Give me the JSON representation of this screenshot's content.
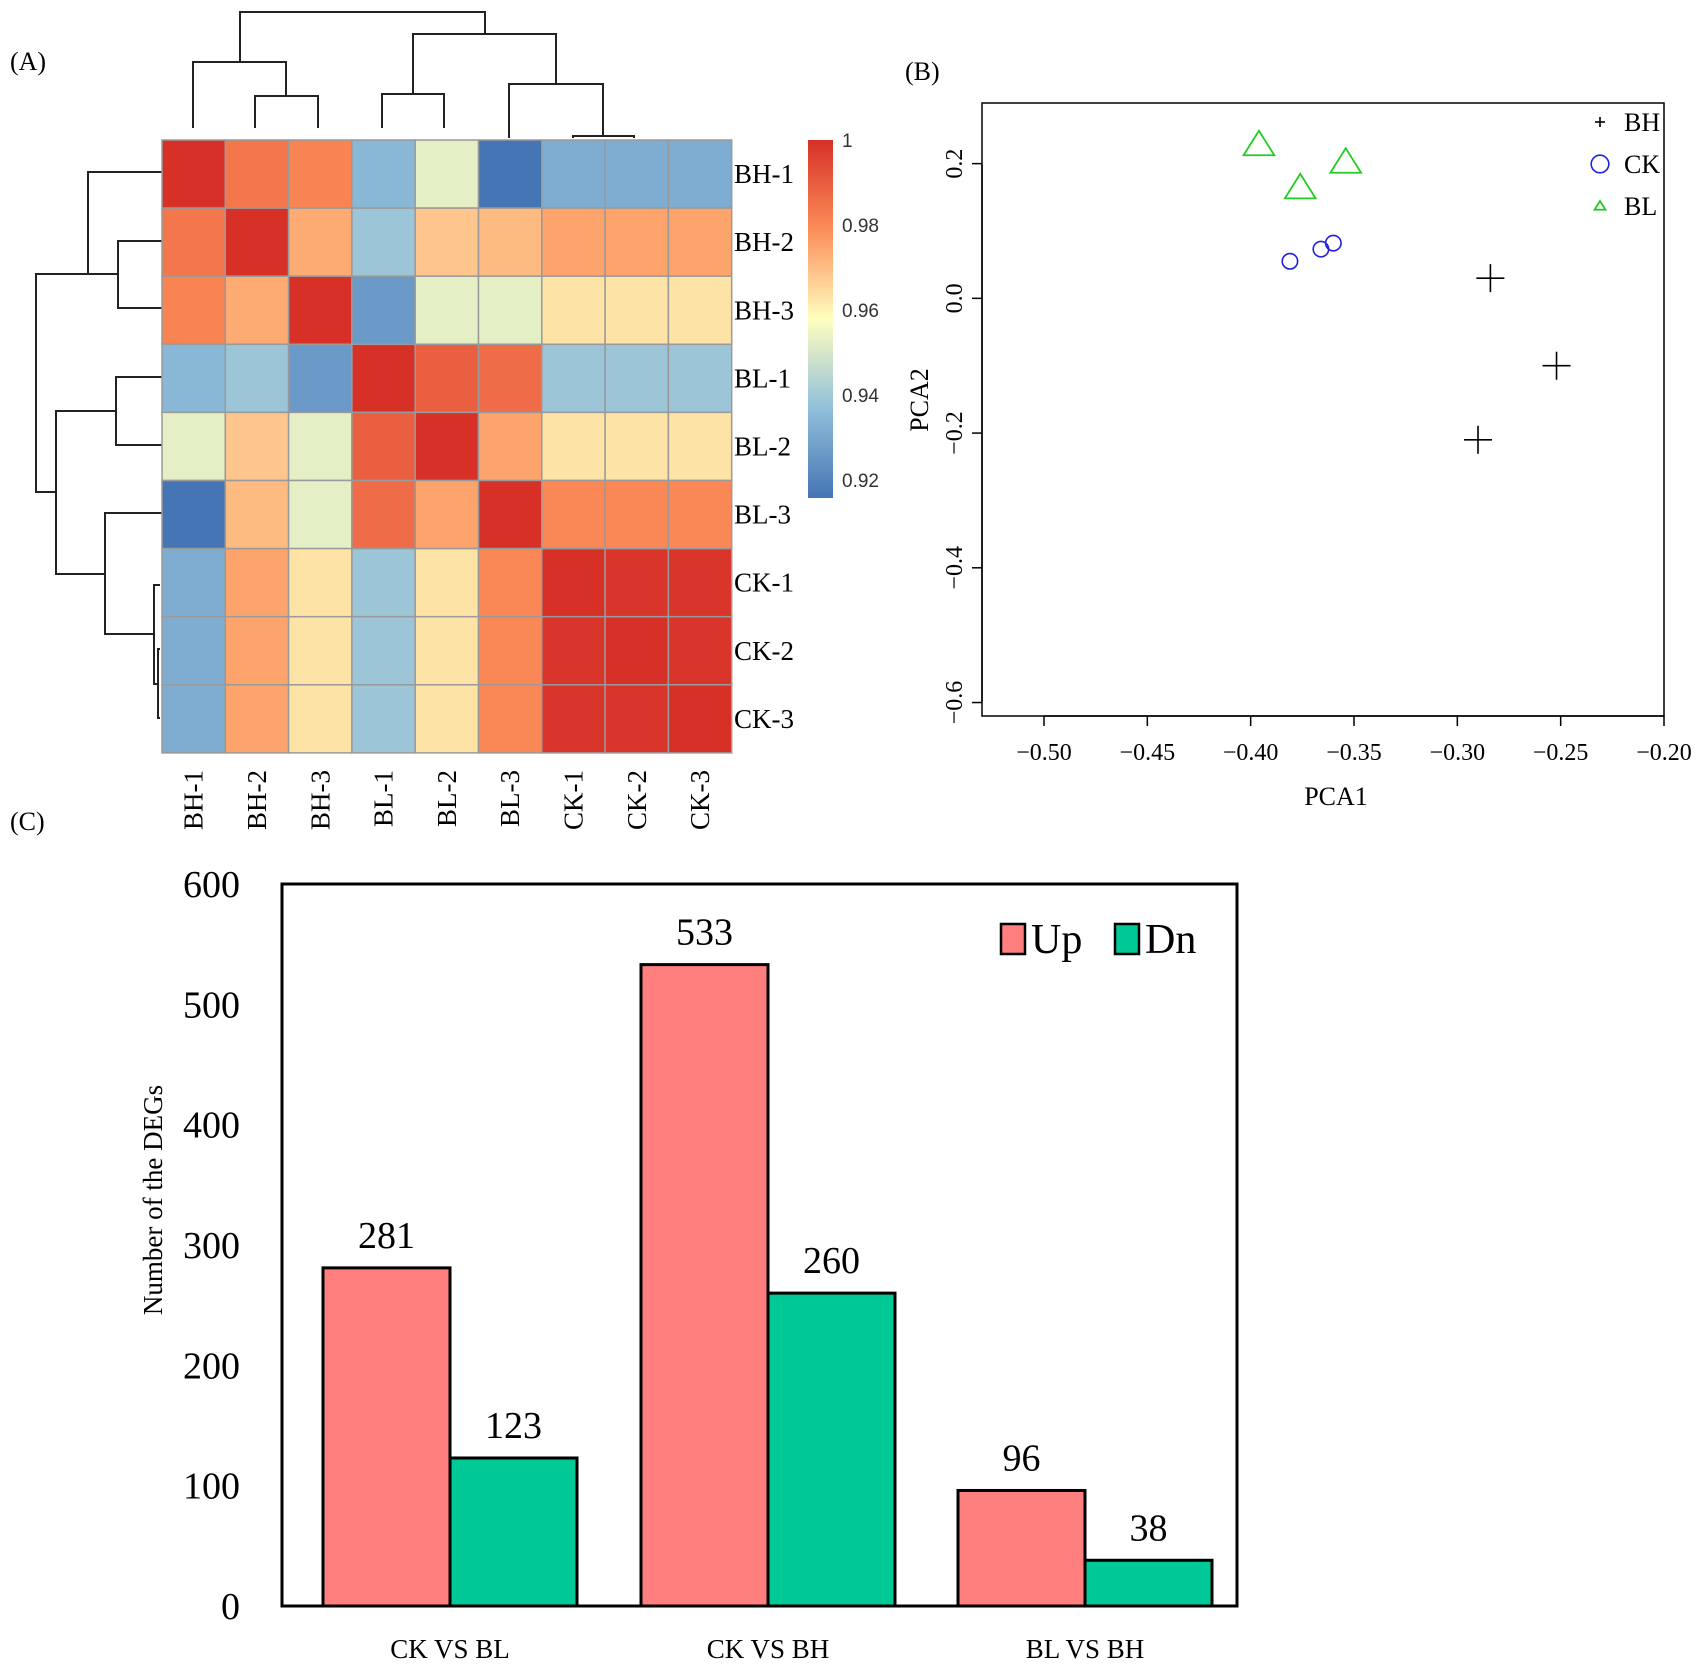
{
  "panels": {
    "a": "(A)",
    "b": "(B)",
    "c": "(C)"
  },
  "chart_data": [
    {
      "type": "heatmap",
      "panel": "(A)",
      "title": "",
      "rows": [
        "BH-1",
        "BH-2",
        "BH-3",
        "BL-1",
        "BL-2",
        "BL-3",
        "CK-1",
        "CK-2",
        "CK-3"
      ],
      "columns": [
        "BH-1",
        "BH-2",
        "BH-3",
        "BL-1",
        "BL-2",
        "BL-3",
        "CK-1",
        "CK-2",
        "CK-3"
      ],
      "values": [
        [
          1.0,
          0.985,
          0.982,
          0.938,
          0.955,
          0.92,
          0.935,
          0.935,
          0.935
        ],
        [
          0.985,
          1.0,
          0.975,
          0.942,
          0.97,
          0.972,
          0.976,
          0.976,
          0.976
        ],
        [
          0.982,
          0.975,
          1.0,
          0.93,
          0.955,
          0.955,
          0.965,
          0.965,
          0.965
        ],
        [
          0.938,
          0.942,
          0.93,
          1.0,
          0.99,
          0.987,
          0.942,
          0.942,
          0.942
        ],
        [
          0.955,
          0.97,
          0.955,
          0.99,
          1.0,
          0.976,
          0.965,
          0.965,
          0.965
        ],
        [
          0.92,
          0.972,
          0.955,
          0.987,
          0.976,
          1.0,
          0.981,
          0.981,
          0.981
        ],
        [
          0.935,
          0.976,
          0.965,
          0.942,
          0.965,
          0.981,
          1.0,
          0.999,
          0.999
        ],
        [
          0.935,
          0.976,
          0.965,
          0.942,
          0.965,
          0.981,
          0.999,
          1.0,
          0.999
        ],
        [
          0.935,
          0.976,
          0.965,
          0.942,
          0.965,
          0.981,
          0.999,
          0.999,
          1.0
        ]
      ],
      "colorbar": {
        "ticks": [
          "1",
          "0.98",
          "0.96",
          "0.94",
          "0.92"
        ],
        "range": [
          0.92,
          1.0
        ]
      }
    },
    {
      "type": "scatter",
      "panel": "(B)",
      "xlabel": "PCA1",
      "ylabel": "PCA2",
      "xlim": [
        -0.53,
        -0.2
      ],
      "ylim": [
        -0.62,
        0.29
      ],
      "xticks": [
        -0.5,
        -0.45,
        -0.4,
        -0.35,
        -0.3,
        -0.25,
        -0.2
      ],
      "xtick_labels": [
        "−0.50",
        "−0.45",
        "−0.40",
        "−0.35",
        "−0.30",
        "−0.25",
        "−0.20"
      ],
      "yticks": [
        0.2,
        0.0,
        -0.2,
        -0.4,
        -0.6
      ],
      "ytick_labels": [
        "0.2",
        "0.0",
        "−0.2",
        "−0.4",
        "−0.6"
      ],
      "series": [
        {
          "name": "BH",
          "marker": "plus",
          "color": "#000000",
          "points": [
            [
              -0.284,
              0.03
            ],
            [
              -0.252,
              -0.1
            ],
            [
              -0.29,
              -0.21
            ]
          ]
        },
        {
          "name": "CK",
          "marker": "circle",
          "color": "#2020dd",
          "points": [
            [
              -0.381,
              0.055
            ],
            [
              -0.366,
              0.073
            ],
            [
              -0.36,
              0.082
            ]
          ]
        },
        {
          "name": "BL",
          "marker": "triangle",
          "color": "#22cc22",
          "points": [
            [
              -0.396,
              0.228
            ],
            [
              -0.376,
              0.164
            ],
            [
              -0.354,
              0.202
            ]
          ]
        }
      ]
    },
    {
      "type": "bar",
      "panel": "(C)",
      "title": "",
      "xlabel": "",
      "ylabel": "Number of the DEGs",
      "ylim": [
        0,
        600
      ],
      "yticks": [
        0,
        100,
        200,
        300,
        400,
        500,
        600
      ],
      "categories": [
        "CK VS BL",
        "CK VS BH",
        "BL VS BH"
      ],
      "series": [
        {
          "name": "Up",
          "color": "#ff7f7f",
          "values": [
            281,
            533,
            96
          ]
        },
        {
          "name": "Dn",
          "color": "#00c897",
          "values": [
            123,
            260,
            38
          ]
        }
      ],
      "legend": "top-right"
    }
  ]
}
